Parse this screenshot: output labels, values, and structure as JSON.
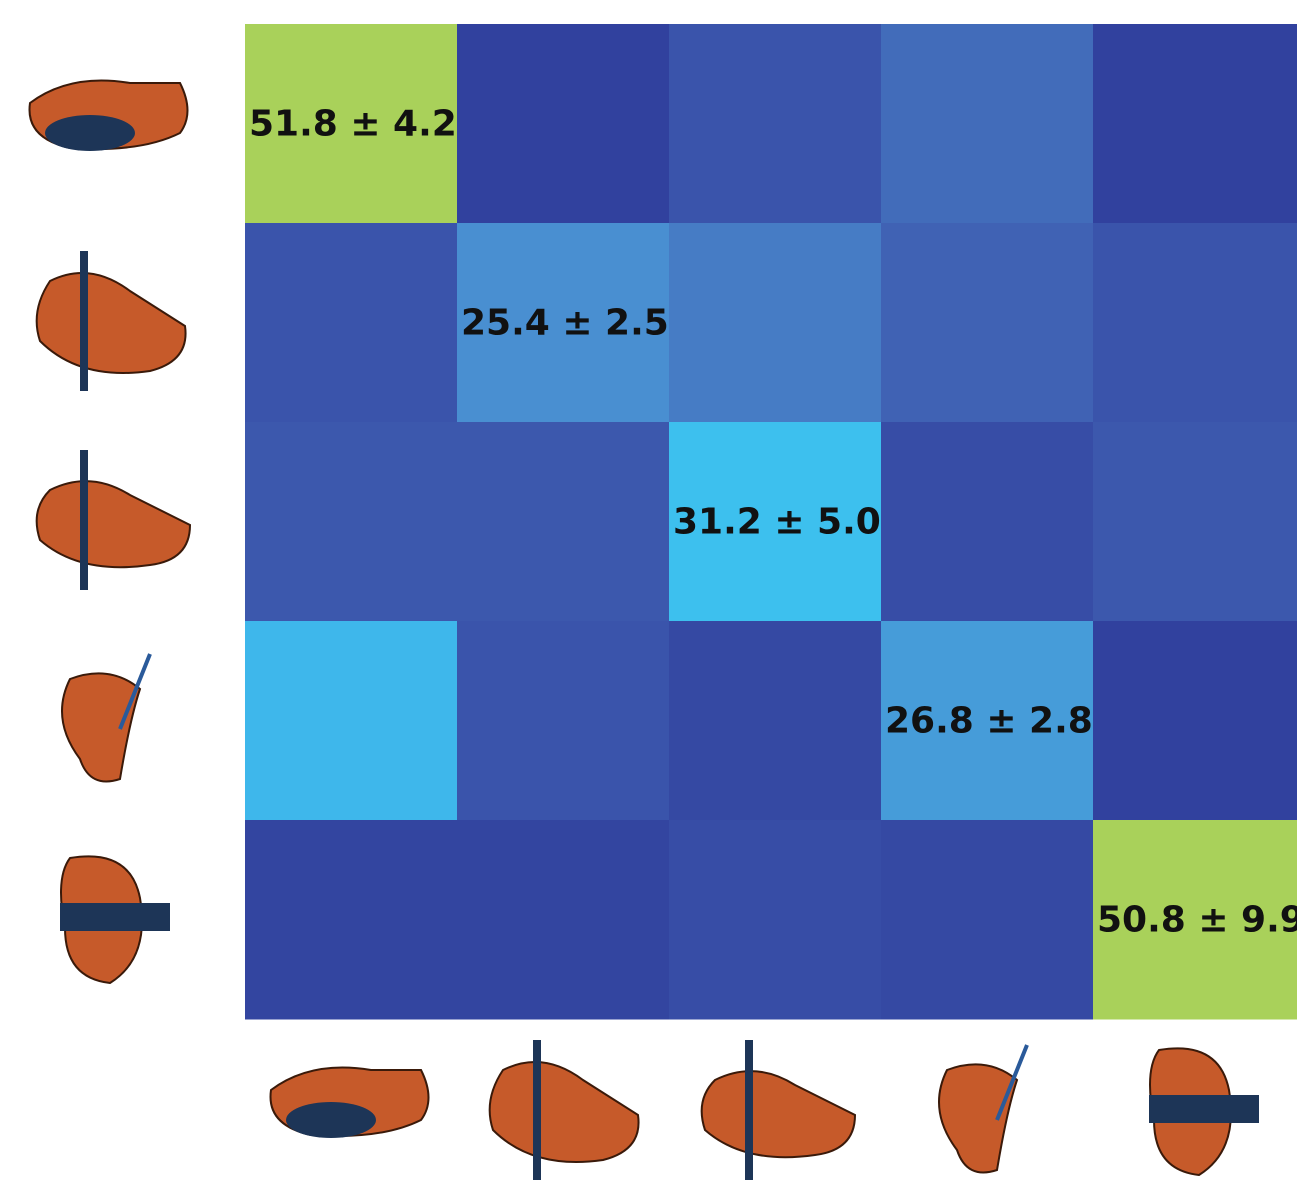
{
  "chart_data": {
    "type": "heatmap",
    "values": [
      [
        51.8,
        3,
        8,
        15,
        3
      ],
      [
        8,
        25.4,
        20,
        12,
        8
      ],
      [
        9,
        9,
        31.2,
        6,
        9
      ],
      [
        30,
        8,
        5,
        26.8,
        3
      ],
      [
        4,
        4,
        6,
        5,
        50.8
      ]
    ],
    "value_labels": [
      [
        "51.8 ± 4.2",
        null,
        null,
        null,
        null
      ],
      [
        null,
        "25.4 ± 2.5",
        null,
        null,
        null
      ],
      [
        null,
        null,
        "31.2 ± 5.0",
        null,
        null
      ],
      [
        null,
        null,
        null,
        "26.8 ± 2.8",
        null
      ],
      [
        null,
        null,
        null,
        null,
        "50.8 ± 9.9"
      ]
    ],
    "colormap": [
      [
        0,
        "#2c3696"
      ],
      [
        10,
        "#3e5cb0"
      ],
      [
        25,
        "#4a8ccf"
      ],
      [
        31,
        "#3cc0f0"
      ],
      [
        50,
        "#a9d15a"
      ]
    ]
  }
}
